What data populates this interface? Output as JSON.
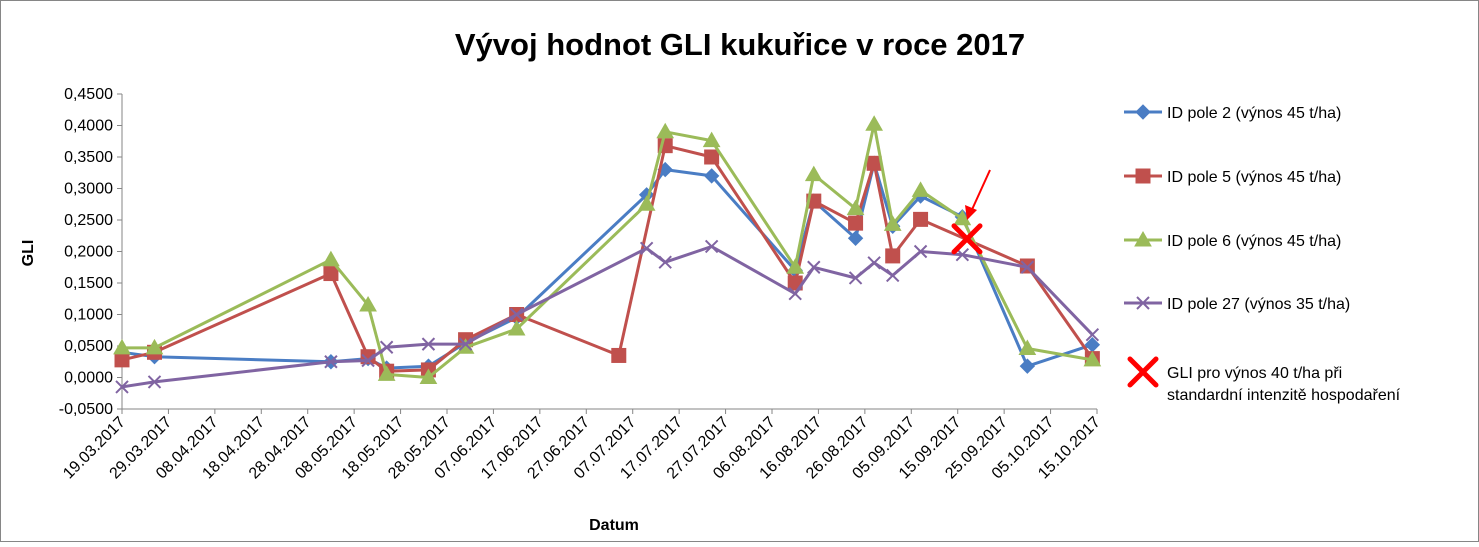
{
  "chart_data": {
    "type": "line",
    "title": "Vývoj hodnot GLI kukuřice v roce 2017",
    "xlabel": "Datum",
    "ylabel": "GLI",
    "ylim": [
      -0.05,
      0.45
    ],
    "yticks": [
      -0.05,
      0.0,
      0.05,
      0.1,
      0.15,
      0.2,
      0.25,
      0.3,
      0.35,
      0.4,
      0.45
    ],
    "ytick_labels": [
      "-0,0500",
      "0,0000",
      "0,0500",
      "0,1000",
      "0,1500",
      "0,2000",
      "0,2500",
      "0,3000",
      "0,3500",
      "0,4000",
      "0,4500"
    ],
    "xlim": [
      "2017-03-19",
      "2017-10-15"
    ],
    "xticks": [
      "2017-03-19",
      "2017-03-29",
      "2017-04-08",
      "2017-04-18",
      "2017-04-28",
      "2017-05-08",
      "2017-05-18",
      "2017-05-28",
      "2017-06-07",
      "2017-06-17",
      "2017-06-27",
      "2017-07-07",
      "2017-07-17",
      "2017-07-27",
      "2017-08-06",
      "2017-08-16",
      "2017-08-26",
      "2017-09-05",
      "2017-09-15",
      "2017-09-25",
      "2017-10-05",
      "2017-10-15"
    ],
    "xtick_labels": [
      "19.03.2017",
      "29.03.2017",
      "08.04.2017",
      "18.04.2017",
      "28.04.2017",
      "08.05.2017",
      "18.05.2017",
      "28.05.2017",
      "07.06.2017",
      "17.06.2017",
      "27.06.2017",
      "07.07.2017",
      "17.07.2017",
      "27.07.2017",
      "06.08.2017",
      "16.08.2017",
      "26.08.2017",
      "05.09.2017",
      "15.09.2017",
      "25.09.2017",
      "05.10.2017",
      "15.10.2017"
    ],
    "grid": false,
    "legend": "right",
    "series": [
      {
        "name": "ID pole 2 (výnos 45 t/ha)",
        "color": "#4a7dc4",
        "marker": "diamond",
        "points": [
          [
            "2017-03-19",
            0.04
          ],
          [
            "2017-03-26",
            0.033
          ],
          [
            "2017-05-03",
            0.025
          ],
          [
            "2017-05-11",
            0.03
          ],
          [
            "2017-05-15",
            0.015
          ],
          [
            "2017-05-24",
            0.018
          ],
          [
            "2017-06-01",
            0.055
          ],
          [
            "2017-06-12",
            0.095
          ],
          [
            "2017-07-10",
            0.29
          ],
          [
            "2017-07-14",
            0.33
          ],
          [
            "2017-07-24",
            0.32
          ],
          [
            "2017-08-11",
            0.17
          ],
          [
            "2017-08-15",
            0.28
          ],
          [
            "2017-08-24",
            0.221
          ],
          [
            "2017-08-28",
            0.34
          ],
          [
            "2017-09-01",
            0.24
          ],
          [
            "2017-09-07",
            0.288
          ],
          [
            "2017-09-16",
            0.255
          ],
          [
            "2017-09-30",
            0.018
          ],
          [
            "2017-10-14",
            0.052
          ]
        ]
      },
      {
        "name": "ID pole 5 (výnos 45 t/ha)",
        "color": "#c0504d",
        "marker": "square",
        "points": [
          [
            "2017-03-19",
            0.028
          ],
          [
            "2017-03-26",
            0.04
          ],
          [
            "2017-05-03",
            0.165
          ],
          [
            "2017-05-11",
            0.033
          ],
          [
            "2017-05-15",
            0.01
          ],
          [
            "2017-05-24",
            0.012
          ],
          [
            "2017-06-01",
            0.06
          ],
          [
            "2017-06-12",
            0.1
          ],
          [
            "2017-07-04",
            0.035
          ],
          [
            "2017-07-14",
            0.368
          ],
          [
            "2017-07-24",
            0.35
          ],
          [
            "2017-08-11",
            0.15
          ],
          [
            "2017-08-15",
            0.28
          ],
          [
            "2017-08-24",
            0.245
          ],
          [
            "2017-08-28",
            0.34
          ],
          [
            "2017-09-01",
            0.193
          ],
          [
            "2017-09-07",
            0.251
          ],
          [
            "2017-09-30",
            0.177
          ],
          [
            "2017-10-14",
            0.03
          ]
        ]
      },
      {
        "name": "ID pole 6 (výnos 45 t/ha)",
        "color": "#9bbb59",
        "marker": "triangle",
        "points": [
          [
            "2017-03-19",
            0.047
          ],
          [
            "2017-03-26",
            0.047
          ],
          [
            "2017-05-03",
            0.187
          ],
          [
            "2017-05-11",
            0.115
          ],
          [
            "2017-05-15",
            0.005
          ],
          [
            "2017-05-24",
            0.0
          ],
          [
            "2017-06-01",
            0.048
          ],
          [
            "2017-06-12",
            0.077
          ],
          [
            "2017-07-10",
            0.275
          ],
          [
            "2017-07-14",
            0.39
          ],
          [
            "2017-07-24",
            0.376
          ],
          [
            "2017-08-11",
            0.175
          ],
          [
            "2017-08-15",
            0.322
          ],
          [
            "2017-08-24",
            0.268
          ],
          [
            "2017-08-28",
            0.402
          ],
          [
            "2017-09-01",
            0.243
          ],
          [
            "2017-09-07",
            0.297
          ],
          [
            "2017-09-16",
            0.252
          ],
          [
            "2017-09-30",
            0.046
          ],
          [
            "2017-10-14",
            0.028
          ]
        ]
      },
      {
        "name": "ID pole 27 (výnos 35 t/ha)",
        "color": "#8064a2",
        "marker": "x",
        "points": [
          [
            "2017-03-19",
            -0.015
          ],
          [
            "2017-03-26",
            -0.007
          ],
          [
            "2017-05-03",
            0.025
          ],
          [
            "2017-05-11",
            0.027
          ],
          [
            "2017-05-15",
            0.048
          ],
          [
            "2017-05-24",
            0.053
          ],
          [
            "2017-06-01",
            0.053
          ],
          [
            "2017-06-12",
            0.1
          ],
          [
            "2017-07-10",
            0.205
          ],
          [
            "2017-07-14",
            0.183
          ],
          [
            "2017-07-24",
            0.208
          ],
          [
            "2017-08-11",
            0.133
          ],
          [
            "2017-08-15",
            0.175
          ],
          [
            "2017-08-24",
            0.158
          ],
          [
            "2017-08-28",
            0.182
          ],
          [
            "2017-09-01",
            0.162
          ],
          [
            "2017-09-07",
            0.2
          ],
          [
            "2017-09-16",
            0.195
          ],
          [
            "2017-09-30",
            0.175
          ],
          [
            "2017-10-14",
            0.068
          ]
        ]
      },
      {
        "name": "GLI pro výnos 40 t/ha při standardní intenzitě hospodaření",
        "color": "#ff0000",
        "marker": "bigx",
        "points": [
          [
            "2017-09-17",
            0.22
          ]
        ]
      }
    ],
    "annotations": [
      {
        "type": "arrow",
        "color": "#ff0000",
        "target": [
          "2017-09-17",
          0.25
        ]
      }
    ]
  }
}
